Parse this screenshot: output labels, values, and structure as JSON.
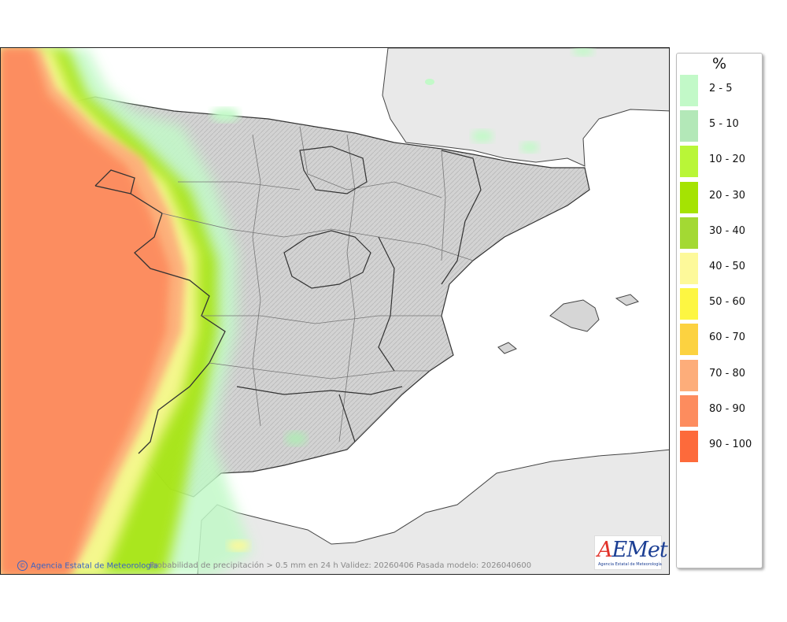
{
  "legend": {
    "title": "%",
    "items": [
      {
        "label": "2 - 5",
        "color": "#c2f9c8"
      },
      {
        "label": "5 - 10",
        "color": "#b3e8b8"
      },
      {
        "label": "10 - 20",
        "color": "#b9f637"
      },
      {
        "label": "20 - 30",
        "color": "#a5e302"
      },
      {
        "label": "30 - 40",
        "color": "#a3d933"
      },
      {
        "label": "40 - 50",
        "color": "#fdf99a"
      },
      {
        "label": "50 - 60",
        "color": "#fdf642"
      },
      {
        "label": "60 - 70",
        "color": "#fcd240"
      },
      {
        "label": "70 - 80",
        "color": "#fdad7a"
      },
      {
        "label": "80 - 90",
        "color": "#fd8c5e"
      },
      {
        "label": "90 - 100",
        "color": "#fd6a3b"
      }
    ]
  },
  "footer": {
    "agency": "Agencia Estatal de Meteorología",
    "caption": "Probabilidad de precipitación > 0.5 mm en 24 h Validez: 20260406 Pasada modelo: 2026040600"
  },
  "logo": {
    "text": "AEMet",
    "subtitle": "Agencia Estatal de Meteorología"
  },
  "colors": {
    "land": "#d6d6d6",
    "foreign_land": "#e9e9e9",
    "sea": "#ffffff",
    "border": "#333333"
  }
}
